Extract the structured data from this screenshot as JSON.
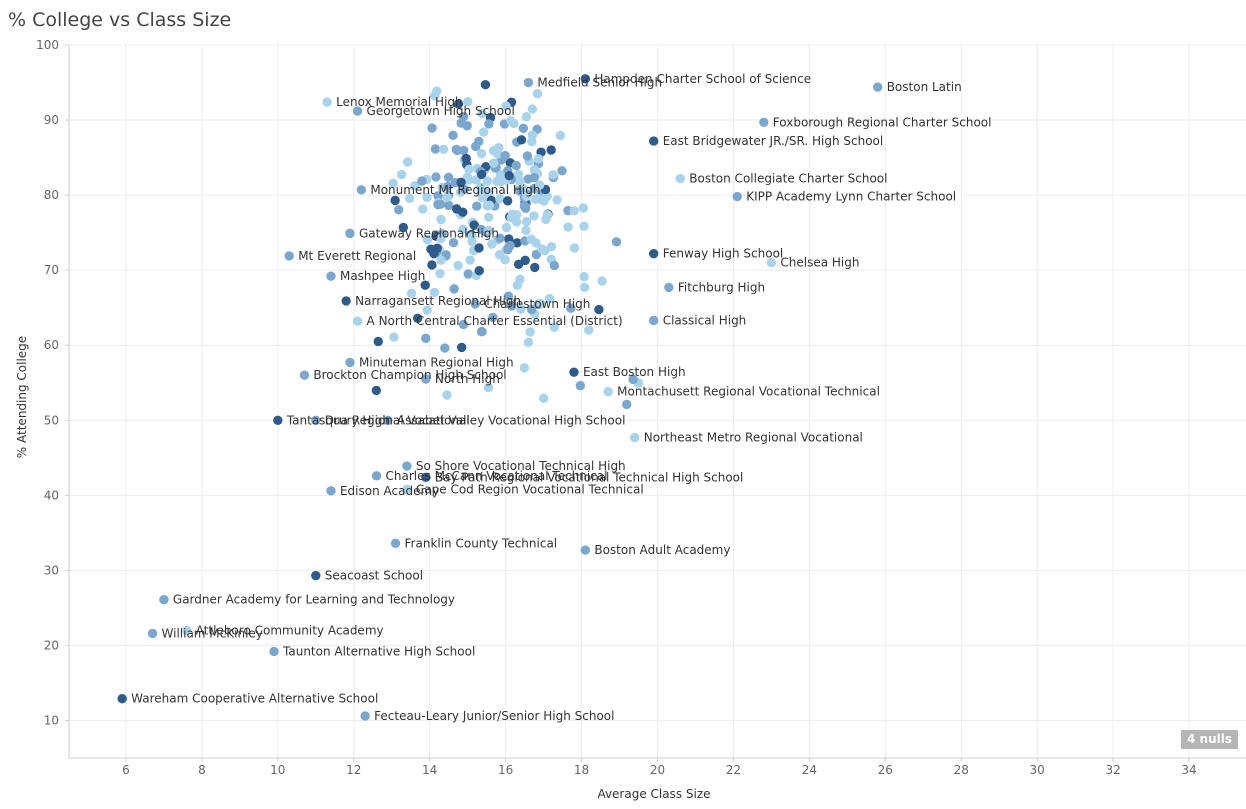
{
  "title": "% College vs Class Size",
  "nulls_badge": "4 nulls",
  "colors": {
    "light": "#a8d3ea",
    "mid": "#7ba7cf",
    "dark": "#2f5b8a",
    "grid": "#ececec",
    "axis": "#cfcfcf"
  },
  "chart_data": {
    "type": "scatter",
    "xlabel": "Average Class Size",
    "ylabel": "% Attending College",
    "xlim": [
      4.5,
      35.5
    ],
    "ylim": [
      5,
      100
    ],
    "xticks": [
      6,
      8,
      10,
      12,
      14,
      16,
      18,
      20,
      22,
      24,
      26,
      28,
      30,
      32,
      34
    ],
    "yticks": [
      10,
      20,
      30,
      40,
      50,
      60,
      70,
      80,
      90,
      100
    ],
    "grid": true,
    "labeled_points": [
      {
        "name": "Medfield Senior High",
        "x": 16.6,
        "y": 95.0
      },
      {
        "name": "Hampden Charter School of Science",
        "x": 18.1,
        "y": 95.5
      },
      {
        "name": "Georgetown High School",
        "x": 12.1,
        "y": 91.2
      },
      {
        "name": "Lenox Memorial High",
        "x": 11.3,
        "y": 92.4
      },
      {
        "name": "Boston Latin",
        "x": 25.8,
        "y": 94.4
      },
      {
        "name": "Foxborough Regional Charter School",
        "x": 22.8,
        "y": 89.7
      },
      {
        "name": "East Bridgewater JR./SR. High School",
        "x": 19.9,
        "y": 87.2
      },
      {
        "name": "Monument Mt Regional High",
        "x": 12.2,
        "y": 80.7
      },
      {
        "name": "Boston Collegiate Charter School",
        "x": 20.6,
        "y": 82.2
      },
      {
        "name": "KIPP Academy Lynn Charter School",
        "x": 22.1,
        "y": 79.8
      },
      {
        "name": "Gateway Regional High",
        "x": 11.9,
        "y": 74.9
      },
      {
        "name": "Fenway High School",
        "x": 19.9,
        "y": 72.2
      },
      {
        "name": "Mt Everett Regional",
        "x": 10.3,
        "y": 71.9
      },
      {
        "name": "Chelsea High",
        "x": 23.0,
        "y": 71.0
      },
      {
        "name": "Mashpee High",
        "x": 11.4,
        "y": 69.2
      },
      {
        "name": "Fitchburg High",
        "x": 20.3,
        "y": 67.7
      },
      {
        "name": "Narragansett Regional High",
        "x": 11.8,
        "y": 65.9
      },
      {
        "name": "Charlestown High",
        "x": 15.2,
        "y": 65.5
      },
      {
        "name": "A North Central Charter Essential (District)",
        "x": 12.1,
        "y": 63.2
      },
      {
        "name": "Classical High",
        "x": 19.9,
        "y": 63.3
      },
      {
        "name": "Minuteman Regional High",
        "x": 11.9,
        "y": 57.7
      },
      {
        "name": "East Boston High",
        "x": 17.8,
        "y": 56.4
      },
      {
        "name": "Brockton Champion High School",
        "x": 10.7,
        "y": 56.0
      },
      {
        "name": "Montachusett Regional Vocational Technical",
        "x": 18.7,
        "y": 53.8
      },
      {
        "name": "North High",
        "x": 13.9,
        "y": 55.5
      },
      {
        "name": "Drury High",
        "x": 11.0,
        "y": 50.0
      },
      {
        "name": "Tantasqua Regional Vocational",
        "x": 10.0,
        "y": 50.0
      },
      {
        "name": "Assabet Valley Vocational High School",
        "x": 12.9,
        "y": 50.0
      },
      {
        "name": "Northeast Metro Regional Vocational",
        "x": 19.4,
        "y": 47.7
      },
      {
        "name": "So Shore Vocational Technical High",
        "x": 13.4,
        "y": 43.9
      },
      {
        "name": "Charles McCann Vocational Technical",
        "x": 12.6,
        "y": 42.6
      },
      {
        "name": "Bay Path Regional Vocational Technical High School",
        "x": 13.9,
        "y": 42.4
      },
      {
        "name": "Edison Academy",
        "x": 11.4,
        "y": 40.6
      },
      {
        "name": "Cape Cod Region Vocational Technical",
        "x": 13.4,
        "y": 40.8
      },
      {
        "name": "Franklin County Technical",
        "x": 13.1,
        "y": 33.6
      },
      {
        "name": "Boston Adult Academy",
        "x": 18.1,
        "y": 32.7
      },
      {
        "name": "Seacoast School",
        "x": 11.0,
        "y": 29.3
      },
      {
        "name": "Gardner Academy for Learning and Technology",
        "x": 7.0,
        "y": 26.1
      },
      {
        "name": "Attleboro Community Academy",
        "x": 7.6,
        "y": 22.0
      },
      {
        "name": "William McKinley",
        "x": 6.7,
        "y": 21.6
      },
      {
        "name": "Taunton Alternative High School",
        "x": 9.9,
        "y": 19.2
      },
      {
        "name": "Wareham Cooperative Alternative School",
        "x": 5.9,
        "y": 12.9
      },
      {
        "name": "Fecteau-Leary Junior/Senior High School",
        "x": 12.3,
        "y": 10.6
      }
    ]
  }
}
